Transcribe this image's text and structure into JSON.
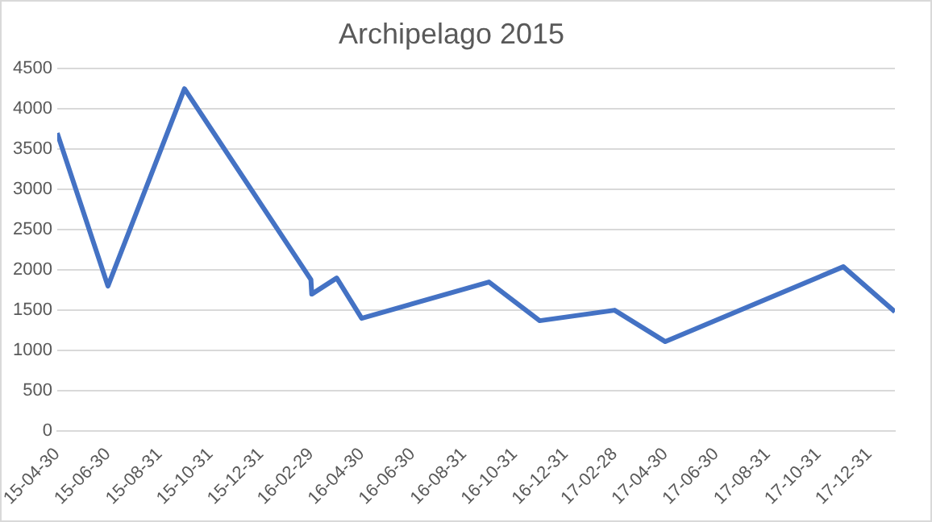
{
  "chart_data": {
    "type": "line",
    "title": "Archipelago 2015",
    "x": [
      "2015-04-30",
      "2015-06-30",
      "2015-09-30",
      "2016-02-29",
      "2016-03-01",
      "2016-03-31",
      "2016-04-30",
      "2016-09-30",
      "2016-11-30",
      "2017-02-28",
      "2017-04-30",
      "2017-11-30",
      "2018-01-31"
    ],
    "series": [
      {
        "color": "#4472c4",
        "values": [
          3700,
          1800,
          4250,
          1880,
          1700,
          1900,
          1400,
          1850,
          1370,
          1500,
          1110,
          2040,
          1480
        ]
      }
    ],
    "xlim": [
      "2015-04-30",
      "2018-01-31"
    ],
    "xticks": [
      {
        "value": "2015-04-30",
        "label": "15-04-30"
      },
      {
        "value": "2015-06-30",
        "label": "15-06-30"
      },
      {
        "value": "2015-08-31",
        "label": "15-08-31"
      },
      {
        "value": "2015-10-31",
        "label": "15-10-31"
      },
      {
        "value": "2015-12-31",
        "label": "15-12-31"
      },
      {
        "value": "2016-02-29",
        "label": "16-02-29"
      },
      {
        "value": "2016-04-30",
        "label": "16-04-30"
      },
      {
        "value": "2016-06-30",
        "label": "16-06-30"
      },
      {
        "value": "2016-08-31",
        "label": "16-08-31"
      },
      {
        "value": "2016-10-31",
        "label": "16-10-31"
      },
      {
        "value": "2016-12-31",
        "label": "16-12-31"
      },
      {
        "value": "2017-02-28",
        "label": "17-02-28"
      },
      {
        "value": "2017-04-30",
        "label": "17-04-30"
      },
      {
        "value": "2017-06-30",
        "label": "17-06-30"
      },
      {
        "value": "2017-08-31",
        "label": "17-08-31"
      },
      {
        "value": "2017-10-31",
        "label": "17-10-31"
      },
      {
        "value": "2017-12-31",
        "label": "17-12-31"
      }
    ],
    "ylim": [
      0,
      4500
    ],
    "yticks": [
      0,
      500,
      1000,
      1500,
      2000,
      2500,
      3000,
      3500,
      4000,
      4500
    ],
    "grid": "y",
    "legend": false,
    "marker": "none",
    "line_style": "solid"
  }
}
